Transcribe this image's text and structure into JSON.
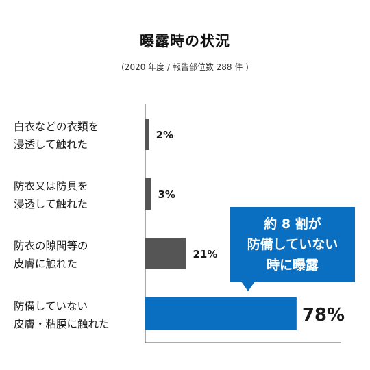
{
  "header": {
    "title": "曝露時の状況",
    "subtitle": "(2020 年度 / 報告部位数 288 件 )"
  },
  "callout": {
    "lines": [
      "約 8 割が",
      "防備していない",
      "時に曝露"
    ],
    "color": "#0b6fc1"
  },
  "chart_data": {
    "type": "bar",
    "orientation": "horizontal",
    "categories": [
      [
        "白衣などの衣類を",
        "浸透して触れた"
      ],
      [
        "防衣又は防具を",
        "浸透して触れた"
      ],
      [
        "防衣の隙間等の",
        "皮膚に触れた"
      ],
      [
        "防備していない",
        "皮膚・粘膜に触れた"
      ]
    ],
    "values": [
      2,
      3,
      21,
      78
    ],
    "value_labels": [
      "2%",
      "3%",
      "21%",
      "78%"
    ],
    "unit": "%",
    "xlim": [
      0,
      100
    ],
    "grid": false,
    "bar_colors": [
      "#555555",
      "#555555",
      "#555555",
      "#0b6fc1"
    ]
  }
}
